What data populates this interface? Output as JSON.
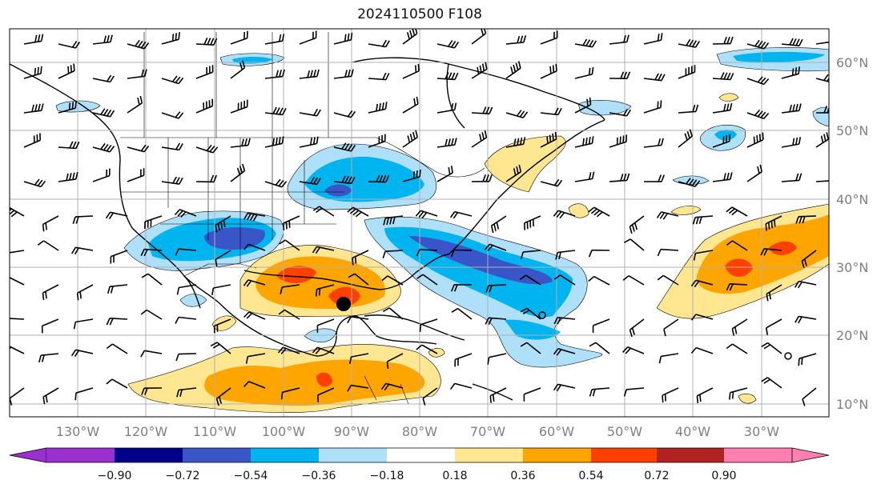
{
  "title": "2024110500 F108",
  "longitude_labels": [
    "130°W",
    "120°W",
    "110°W",
    "100°W",
    "90°W",
    "80°W",
    "70°W",
    "60°W",
    "50°W",
    "40°W",
    "30°W"
  ],
  "latitude_labels": [
    "60°N",
    "50°N",
    "40°N",
    "30°N",
    "20°N",
    "10°N"
  ],
  "colorbar": {
    "levels": [
      "−0.90",
      "−0.72",
      "−0.54",
      "−0.36",
      "−0.18",
      "0.18",
      "0.36",
      "0.54",
      "0.72",
      "0.90"
    ],
    "colors": [
      "#9b30d0",
      "#00008b",
      "#3a55c8",
      "#00b4f0",
      "#aee0fa",
      "#ffffff",
      "#ffe690",
      "#ffa500",
      "#ff4000",
      "#b22222",
      "#ff80b0"
    ]
  },
  "marker": {
    "name": "storm-center-dot",
    "lon": -90.5,
    "lat": 24.5
  }
}
